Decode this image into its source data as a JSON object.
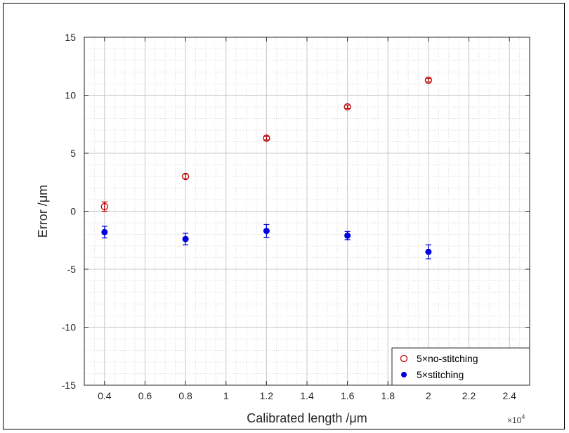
{
  "chart_data": {
    "type": "scatter",
    "xlabel": "Calibrated length /μm",
    "ylabel": "Error /μm",
    "x_multiplier": "×10",
    "x_multiplier_exp": "4",
    "xlim": [
      0.3,
      2.5
    ],
    "ylim": [
      -15,
      15
    ],
    "xticks": [
      0.4,
      0.6,
      0.8,
      1,
      1.2,
      1.4,
      1.6,
      1.8,
      2,
      2.2,
      2.4
    ],
    "xtick_labels": [
      "0.4",
      "0.6",
      "0.8",
      "1",
      "1.2",
      "1.4",
      "1.6",
      "1.8",
      "2",
      "2.2",
      "2.4"
    ],
    "yticks": [
      -15,
      -10,
      -5,
      0,
      5,
      10,
      15
    ],
    "ytick_labels": [
      "-15",
      "-10",
      "-5",
      "0",
      "5",
      "10",
      "15"
    ],
    "grid": true,
    "minor_grid": true,
    "legend_position": "bottom-right",
    "series": [
      {
        "name": "5×no-stitching",
        "color": "#c00000",
        "marker": "open-circle",
        "x": [
          0.4,
          0.8,
          1.2,
          1.6,
          2.0
        ],
        "y": [
          0.4,
          3.0,
          6.3,
          9.0,
          11.3
        ],
        "err": [
          0.4,
          0.2,
          0.15,
          0.15,
          0.15
        ]
      },
      {
        "name": "5×stitching",
        "color": "#0000e0",
        "marker": "filled-circle",
        "x": [
          0.4,
          0.8,
          1.2,
          1.6,
          2.0
        ],
        "y": [
          -1.8,
          -2.4,
          -1.7,
          -2.1,
          -3.5
        ],
        "err": [
          0.5,
          0.5,
          0.55,
          0.35,
          0.6
        ]
      }
    ]
  }
}
